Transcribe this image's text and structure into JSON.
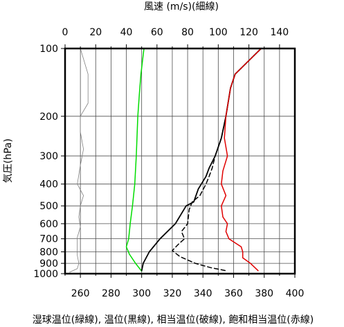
{
  "chart_data": {
    "type": "line",
    "top_axis_title": "風速 (m/s)(細線)",
    "y_axis_title": "気圧(hPa)",
    "bottom_axis_title": "湿球温位(緑線), 温位(黒線), 相当温位(破線), 飽和相当温位(赤線)",
    "top_axis": {
      "range": [
        0,
        150
      ],
      "ticks": [
        0,
        20,
        40,
        60,
        80,
        100,
        120,
        140
      ]
    },
    "bottom_axis": {
      "range": [
        250,
        400
      ],
      "ticks": [
        260,
        280,
        300,
        320,
        340,
        360,
        380,
        400
      ]
    },
    "y_axis": {
      "scale": "log",
      "range": [
        1000,
        100
      ],
      "ticks": [
        100,
        200,
        300,
        400,
        500,
        600,
        700,
        800,
        900,
        1000
      ]
    },
    "grid": true,
    "series": [
      {
        "name": "風速",
        "axis": "top",
        "color": "#808080",
        "style": "thin",
        "points": [
          [
            10,
            100
          ],
          [
            15,
            130
          ],
          [
            15,
            150
          ],
          [
            15,
            175
          ],
          [
            10,
            200
          ],
          [
            10,
            235
          ],
          [
            12,
            280
          ],
          [
            10,
            330
          ],
          [
            8,
            400
          ],
          [
            12,
            450
          ],
          [
            10,
            500
          ],
          [
            9,
            560
          ],
          [
            10,
            620
          ],
          [
            8,
            690
          ],
          [
            8,
            760
          ],
          [
            8,
            830
          ],
          [
            9,
            900
          ],
          [
            8,
            950
          ],
          [
            3,
            985
          ]
        ]
      },
      {
        "name": "湿球温位",
        "axis": "bottom",
        "color": "#00dd00",
        "style": "solid",
        "points": [
          [
            301.5,
            100
          ],
          [
            299.5,
            130
          ],
          [
            298.5,
            160
          ],
          [
            297.5,
            200
          ],
          [
            296.5,
            300
          ],
          [
            295.5,
            400
          ],
          [
            294,
            500
          ],
          [
            292.5,
            600
          ],
          [
            291.5,
            700
          ],
          [
            290,
            760
          ],
          [
            292,
            820
          ],
          [
            296,
            900
          ],
          [
            300,
            975
          ]
        ]
      },
      {
        "name": "温位",
        "axis": "bottom",
        "color": "#000000",
        "style": "solid",
        "points": [
          [
            378,
            100
          ],
          [
            361,
            130
          ],
          [
            358,
            150
          ],
          [
            355,
            200
          ],
          [
            352,
            250
          ],
          [
            348,
            300
          ],
          [
            344,
            340
          ],
          [
            342,
            370
          ],
          [
            337,
            420
          ],
          [
            334,
            480
          ],
          [
            329,
            500
          ],
          [
            322,
            600
          ],
          [
            312,
            700
          ],
          [
            305,
            800
          ],
          [
            301,
            900
          ],
          [
            300,
            970
          ]
        ]
      },
      {
        "name": "相当温位",
        "axis": "bottom",
        "color": "#000000",
        "style": "dashed",
        "points": [
          [
            378,
            100
          ],
          [
            361,
            130
          ],
          [
            358,
            150
          ],
          [
            355,
            200
          ],
          [
            352,
            250
          ],
          [
            348,
            300
          ],
          [
            346,
            340
          ],
          [
            344,
            370
          ],
          [
            342,
            400
          ],
          [
            338,
            450
          ],
          [
            333,
            480
          ],
          [
            331,
            520
          ],
          [
            330,
            600
          ],
          [
            326,
            650
          ],
          [
            328,
            700
          ],
          [
            324,
            740
          ],
          [
            320,
            790
          ],
          [
            325,
            840
          ],
          [
            335,
            900
          ],
          [
            345,
            940
          ],
          [
            355,
            970
          ]
        ]
      },
      {
        "name": "飽和相当温位",
        "axis": "bottom",
        "color": "#e00000",
        "style": "solid",
        "points": [
          [
            378,
            100
          ],
          [
            361,
            130
          ],
          [
            358,
            150
          ],
          [
            355,
            200
          ],
          [
            354,
            250
          ],
          [
            356,
            300
          ],
          [
            353,
            350
          ],
          [
            352,
            400
          ],
          [
            355,
            450
          ],
          [
            352,
            500
          ],
          [
            353,
            560
          ],
          [
            356,
            600
          ],
          [
            355,
            650
          ],
          [
            357,
            700
          ],
          [
            365,
            760
          ],
          [
            366,
            800
          ],
          [
            366,
            850
          ],
          [
            371,
            900
          ],
          [
            376,
            970
          ]
        ]
      }
    ]
  }
}
